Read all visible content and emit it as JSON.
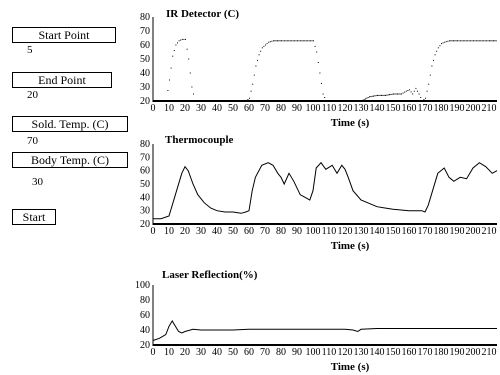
{
  "controls": {
    "start_point": {
      "label": "Start Point",
      "value": "5"
    },
    "end_point": {
      "label": "End Point",
      "value": "20"
    },
    "sold_temp": {
      "label": "Sold. Temp. (C)",
      "value": "70"
    },
    "body_temp": {
      "label": "Body Temp. (C)",
      "value": "30"
    },
    "start_button": "Start"
  },
  "chart_data": [
    {
      "type": "scatter",
      "title": "IR Detector (C)",
      "xlabel": "Time (s)",
      "ylabel": "",
      "xlim": [
        0,
        215
      ],
      "ylim": [
        20,
        80
      ],
      "xticks": [
        0,
        10,
        20,
        30,
        40,
        50,
        60,
        70,
        80,
        90,
        100,
        110,
        120,
        130,
        140,
        150,
        160,
        170,
        180,
        190,
        200,
        210
      ],
      "yticks": [
        20,
        30,
        40,
        50,
        60,
        70,
        80
      ],
      "color": "#000000",
      "series": [
        {
          "x": [
            0,
            8,
            10,
            12,
            14,
            16,
            18,
            20,
            22,
            24,
            26,
            28,
            30,
            35,
            40,
            45,
            50,
            55,
            58,
            60,
            62,
            64,
            66,
            68,
            70,
            72,
            75,
            80,
            90,
            100,
            102,
            104,
            106,
            108,
            110,
            115,
            120,
            125,
            130,
            135,
            140,
            145,
            150,
            155,
            158,
            160,
            162,
            164,
            166,
            168,
            170,
            172,
            174,
            176,
            178,
            180,
            182,
            185,
            190,
            200,
            210,
            215
          ],
          "y": [
            20,
            20,
            35,
            52,
            60,
            63,
            64,
            64,
            50,
            30,
            20,
            20,
            20,
            20,
            20,
            20,
            20,
            20,
            20,
            22,
            32,
            45,
            53,
            58,
            60,
            62,
            63,
            63,
            63,
            63,
            55,
            40,
            25,
            20,
            20,
            20,
            20,
            20,
            20,
            23,
            24,
            24,
            25,
            25,
            27,
            28,
            25,
            29,
            25,
            20,
            22,
            32,
            45,
            53,
            58,
            61,
            62,
            63,
            63,
            63,
            63,
            63
          ]
        }
      ]
    },
    {
      "type": "line",
      "title": "Thermocouple",
      "xlabel": "Time (s)",
      "ylabel": "",
      "xlim": [
        0,
        215
      ],
      "ylim": [
        20,
        80
      ],
      "xticks": [
        0,
        10,
        20,
        30,
        40,
        50,
        60,
        70,
        80,
        90,
        100,
        110,
        120,
        130,
        140,
        150,
        160,
        170,
        180,
        190,
        200,
        210
      ],
      "yticks": [
        20,
        30,
        40,
        50,
        60,
        70,
        80
      ],
      "color": "#000000",
      "series": [
        {
          "x": [
            0,
            5,
            10,
            14,
            18,
            20,
            22,
            25,
            28,
            32,
            36,
            40,
            45,
            50,
            55,
            58,
            60,
            62,
            64,
            68,
            72,
            75,
            78,
            80,
            82,
            85,
            88,
            92,
            95,
            98,
            100,
            102,
            105,
            108,
            112,
            115,
            118,
            120,
            122,
            125,
            130,
            140,
            150,
            160,
            168,
            170,
            172,
            175,
            178,
            182,
            185,
            188,
            192,
            196,
            200,
            204,
            208,
            212,
            215
          ],
          "y": [
            24,
            24,
            26,
            42,
            58,
            63,
            60,
            50,
            42,
            36,
            32,
            30,
            29,
            29,
            28,
            29,
            30,
            45,
            55,
            64,
            66,
            64,
            58,
            55,
            50,
            58,
            52,
            42,
            40,
            38,
            45,
            62,
            66,
            61,
            64,
            58,
            64,
            61,
            55,
            45,
            38,
            33,
            31,
            30,
            30,
            29,
            34,
            46,
            58,
            62,
            55,
            52,
            55,
            54,
            62,
            66,
            63,
            58,
            60
          ]
        }
      ]
    },
    {
      "type": "line",
      "title": "Laser Reflection(%)",
      "xlabel": "Time (s)",
      "ylabel": "",
      "xlim": [
        0,
        215
      ],
      "ylim": [
        20,
        100
      ],
      "xticks": [
        0,
        10,
        20,
        30,
        40,
        50,
        60,
        70,
        80,
        90,
        100,
        110,
        120,
        130,
        140,
        150,
        160,
        170,
        180,
        190,
        200,
        210
      ],
      "yticks": [
        20,
        40,
        60,
        80,
        100
      ],
      "color": "#000000",
      "series": [
        {
          "x": [
            0,
            4,
            8,
            10,
            12,
            14,
            16,
            18,
            20,
            25,
            30,
            40,
            50,
            60,
            70,
            80,
            90,
            100,
            110,
            120,
            125,
            128,
            130,
            140,
            150,
            160,
            170,
            180,
            190,
            200,
            210,
            215
          ],
          "y": [
            26,
            29,
            34,
            45,
            52,
            45,
            38,
            36,
            38,
            41,
            40,
            40,
            40,
            41,
            41,
            41,
            41,
            41,
            41,
            41,
            40,
            38,
            41,
            42,
            42,
            42,
            42,
            42,
            42,
            42,
            42,
            42
          ]
        }
      ]
    }
  ]
}
